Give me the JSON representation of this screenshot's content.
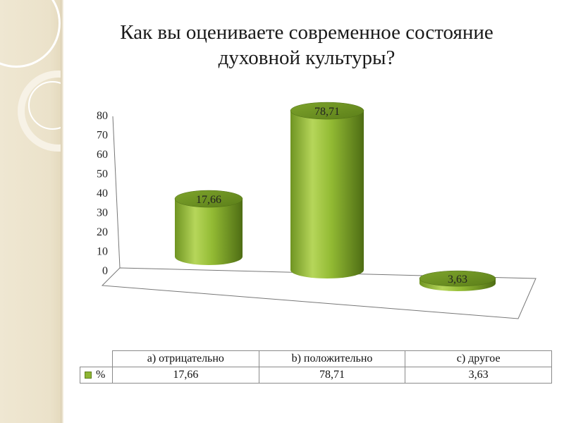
{
  "slide": {
    "title_line1": "Как вы оцениваете современное состояние",
    "title_line2": "духовной культуры?"
  },
  "chart_data": {
    "type": "bar",
    "style": "3d-cylinder",
    "title": "Как вы оцениваете современное состояние духовной культуры?",
    "categories": [
      "a) отрицательно",
      "b) положительно",
      "c) другое"
    ],
    "series": [
      {
        "name": "%",
        "values": [
          17.66,
          78.71,
          3.63
        ],
        "value_labels": [
          "17,66",
          "78,71",
          "3,63"
        ]
      }
    ],
    "y_ticks": [
      "0",
      "10",
      "20",
      "30",
      "40",
      "50",
      "60",
      "70",
      "80"
    ],
    "ylim": [
      0,
      80
    ],
    "grid": false,
    "legend": "data-table-below",
    "colors": {
      "bar": "#8db533",
      "bar_dark": "#5a7c1a",
      "bar_light": "#c4e070",
      "top": "#6b8e23"
    }
  },
  "table": {
    "row_label": "%",
    "headers": [
      "a) отрицательно",
      "b) положительно",
      "c) другое"
    ],
    "values": [
      "17,66",
      "78,71",
      "3,63"
    ]
  }
}
